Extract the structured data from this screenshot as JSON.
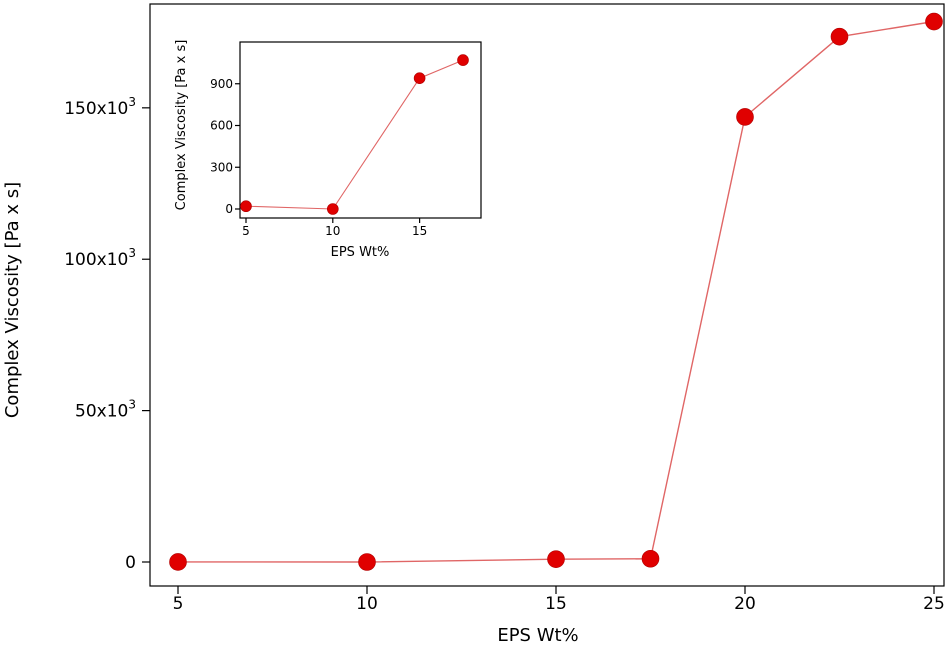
{
  "chart_data": [
    {
      "type": "line",
      "xlabel": "EPS Wt%",
      "ylabel": "Complex Viscosity [Pa x s]",
      "xlim": [
        5,
        25
      ],
      "ylim": [
        0,
        180000
      ],
      "x_ticks": [
        {
          "value": 5,
          "label": "5"
        },
        {
          "value": 10,
          "label": "10"
        },
        {
          "value": 15,
          "label": "15"
        },
        {
          "value": 20,
          "label": "20"
        },
        {
          "value": 25,
          "label": "25"
        }
      ],
      "y_ticks": [
        {
          "value": 0,
          "label": "0",
          "exp": ""
        },
        {
          "value": 50000,
          "label": "50x10",
          "exp": "3"
        },
        {
          "value": 100000,
          "label": "100x10",
          "exp": "3"
        },
        {
          "value": 150000,
          "label": "150x10",
          "exp": "3"
        }
      ],
      "series": [
        {
          "x": [
            5,
            10,
            15,
            17.5,
            20,
            22.5,
            25
          ],
          "y": [
            20,
            0,
            940,
            1070,
            147000,
            173500,
            178500
          ]
        }
      ],
      "grid": false,
      "colors": {
        "line": "#e06666",
        "marker": "#e00000"
      }
    },
    {
      "type": "line",
      "xlabel": "EPS Wt%",
      "ylabel": "Complex Viscosity [Pa x s]",
      "xlim": [
        5,
        17.5
      ],
      "ylim": [
        0,
        1200
      ],
      "x_ticks": [
        {
          "value": 5,
          "label": "5"
        },
        {
          "value": 10,
          "label": "10"
        },
        {
          "value": 15,
          "label": "15"
        }
      ],
      "y_ticks": [
        {
          "value": 0,
          "label": "0"
        },
        {
          "value": 300,
          "label": "300"
        },
        {
          "value": 600,
          "label": "600"
        },
        {
          "value": 900,
          "label": "900"
        }
      ],
      "series": [
        {
          "x": [
            5,
            10,
            15,
            17.5
          ],
          "y": [
            20,
            0,
            940,
            1070
          ]
        }
      ],
      "grid": false,
      "colors": {
        "line": "#e06666",
        "marker": "#e00000"
      }
    }
  ]
}
